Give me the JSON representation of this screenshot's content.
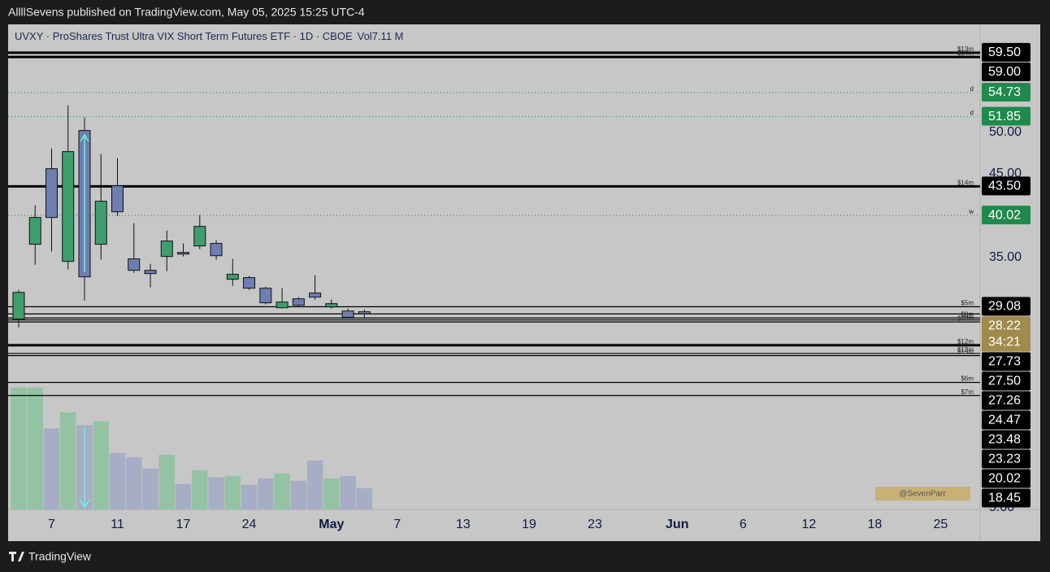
{
  "header": {
    "publisher": "AllllSevens published on TradingView.com, May 05, 2025 15:25 UTC-4",
    "footer": "TradingView"
  },
  "chart_data": {
    "type": "candlestick",
    "title": "UVXY · ProShares Trust Ultra VIX Short Term Futures ETF · 1D · CBOE",
    "volume_name": "Vol",
    "volume_legend": "7.11 M",
    "watermark": "@SevenParr",
    "up_color": "#3f9e6e",
    "down_color": "#6e7eb0",
    "volume_up_color": "#93c3a3",
    "volume_down_color": "#a6adc4",
    "open": [
      27.6,
      36.56,
      45.61,
      34.51,
      50.19,
      36.56,
      43.57,
      34.81,
      33.44,
      35.1,
      35.58,
      36.36,
      36.66,
      32.37,
      32.57,
      31.3,
      28.96,
      30.03,
      30.72,
      29.06,
      28.57,
      28.48
    ],
    "high": [
      31.1,
      41.23,
      48.05,
      53.21,
      51.75,
      47.37,
      46.88,
      39.09,
      34.22,
      38.21,
      36.66,
      40.06,
      37.04,
      34.81,
      32.76,
      31.49,
      31.3,
      30.23,
      32.86,
      29.94,
      28.87,
      28.77
    ],
    "low": [
      26.6,
      34.12,
      35.68,
      33.54,
      29.84,
      34.71,
      39.97,
      33.15,
      31.4,
      33.34,
      35.1,
      35.97,
      34.71,
      31.59,
      31.11,
      29.35,
      28.87,
      29.06,
      29.94,
      28.87,
      27.7,
      27.79
    ],
    "close": [
      30.8,
      39.77,
      39.77,
      47.66,
      32.66,
      41.72,
      40.45,
      33.44,
      33.05,
      36.95,
      35.39,
      38.7,
      35.19,
      32.96,
      31.3,
      29.55,
      29.64,
      29.26,
      30.23,
      29.45,
      27.79,
      28.22
    ],
    "volume": [
      40.8,
      40.8,
      27.1,
      32.5,
      28.2,
      29.5,
      18.9,
      17.5,
      13.7,
      18.3,
      8.5,
      13.1,
      10.7,
      11.2,
      8.2,
      10.4,
      12.0,
      9.6,
      16.4,
      10.4,
      11.2,
      7.11
    ],
    "xlim": [
      -0.64,
      58.4
    ],
    "xticks": [
      {
        "value": 2,
        "label": "7"
      },
      {
        "value": 6,
        "label": "11"
      },
      {
        "value": 10,
        "label": "17"
      },
      {
        "value": 14,
        "label": "24"
      },
      {
        "value": 19,
        "label": "May"
      },
      {
        "value": 23,
        "label": "7"
      },
      {
        "value": 27,
        "label": "13"
      },
      {
        "value": 31,
        "label": "19"
      },
      {
        "value": 35,
        "label": "23"
      },
      {
        "value": 40,
        "label": "Jun"
      },
      {
        "value": 44,
        "label": "6"
      },
      {
        "value": 48,
        "label": "12"
      },
      {
        "value": 52,
        "label": "18"
      },
      {
        "value": 56,
        "label": "25"
      }
    ],
    "ylim": [
      4.8,
      62.9
    ],
    "yticks": [
      {
        "value": 50,
        "label": "50.00"
      },
      {
        "value": 45,
        "label": "45.00"
      },
      {
        "value": 35,
        "label": "35.00"
      },
      {
        "value": 5,
        "label": "5.00"
      }
    ],
    "levels": [
      {
        "value": 59.5,
        "label": "59.50",
        "tag": "$13m",
        "style": "thick",
        "color": "#000000",
        "badge": "#000000"
      },
      {
        "value": 59,
        "label": "59.00",
        "tag": "$14m",
        "style": "thick",
        "color": "#000000",
        "badge": "#000000"
      },
      {
        "value": 54.73,
        "label": "54.73",
        "tag": "d",
        "style": "dotted",
        "color": "#2e8b57",
        "badge": "#1f8a4c"
      },
      {
        "value": 51.85,
        "label": "51.85",
        "tag": "d",
        "style": "dotted",
        "color": "#2e8b57",
        "badge": "#1f8a4c"
      },
      {
        "value": 43.5,
        "label": "43.50",
        "tag": "$14m",
        "style": "thick",
        "color": "#000000",
        "badge": "#000000"
      },
      {
        "value": 40.02,
        "label": "40.02",
        "tag": "w",
        "style": "dotted",
        "color": "#2e8b57",
        "badge": "#1f8a4c"
      },
      {
        "value": 29.08,
        "label": "29.08",
        "tag": "$5m",
        "style": "thin",
        "color": "#000000",
        "badge": "#000000"
      },
      {
        "value": 28.22,
        "label": "28.22",
        "countdown": "34:21",
        "style": "thin",
        "color": "#000000",
        "badge": "#a08a4c"
      },
      {
        "value": 27.73,
        "label": "27.73",
        "tag": "$8m",
        "style": "thin",
        "color": "#000000",
        "badge": "#000000"
      },
      {
        "value": 27.5,
        "label": "27.50",
        "tag": "$9m",
        "style": "thin",
        "color": "#000000",
        "badge": "#000000"
      },
      {
        "value": 27.26,
        "label": "27.26",
        "tag": "$10m",
        "style": "thin",
        "color": "#000000",
        "badge": "#000000"
      },
      {
        "value": 24.47,
        "label": "24.47",
        "tag": "$12m",
        "style": "thick",
        "color": "#000000",
        "badge": "#000000"
      },
      {
        "value": 23.48,
        "label": "23.48",
        "tag": "$13m",
        "style": "thin",
        "color": "#000000",
        "badge": "#000000"
      },
      {
        "value": 23.23,
        "label": "23.23",
        "tag": "$15m",
        "style": "thin",
        "color": "#000000",
        "badge": "#000000"
      },
      {
        "value": 20.02,
        "label": "20.02",
        "tag": "$6m",
        "style": "thin",
        "color": "#000000",
        "badge": "#000000"
      },
      {
        "value": 18.45,
        "label": "18.45",
        "tag": "$7m",
        "style": "thin",
        "color": "#000000",
        "badge": "#000000"
      }
    ]
  }
}
